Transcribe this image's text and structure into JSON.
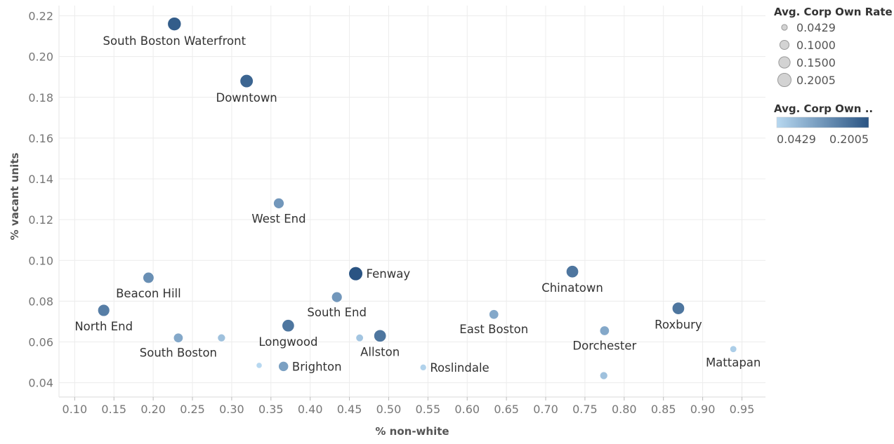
{
  "chart_data": {
    "type": "scatter",
    "xlabel": "% non-white",
    "ylabel": "% vacant units",
    "xlim": [
      0.08,
      0.98
    ],
    "ylim": [
      0.033,
      0.225
    ],
    "xticks": [
      "0.10",
      "0.15",
      "0.20",
      "0.25",
      "0.30",
      "0.35",
      "0.40",
      "0.45",
      "0.50",
      "0.55",
      "0.60",
      "0.65",
      "0.70",
      "0.75",
      "0.80",
      "0.85",
      "0.90",
      "0.95"
    ],
    "yticks": [
      "0.04",
      "0.06",
      "0.08",
      "0.10",
      "0.12",
      "0.14",
      "0.16",
      "0.18",
      "0.20",
      "0.22"
    ],
    "grid": true,
    "color_scale": {
      "low": "#b7d8f0",
      "high": "#2a5483"
    },
    "points": [
      {
        "label": "South Boston Waterfront",
        "x": 0.227,
        "y": 0.216,
        "rate": 0.19,
        "label_pos": "below"
      },
      {
        "label": "Downtown",
        "x": 0.319,
        "y": 0.188,
        "rate": 0.18,
        "label_pos": "below"
      },
      {
        "label": "West End",
        "x": 0.36,
        "y": 0.128,
        "rate": 0.12,
        "label_pos": "below"
      },
      {
        "label": "Fenway",
        "x": 0.458,
        "y": 0.0935,
        "rate": 0.2005,
        "label_pos": "right"
      },
      {
        "label": "Beacon Hill",
        "x": 0.194,
        "y": 0.0915,
        "rate": 0.13,
        "label_pos": "below"
      },
      {
        "label": "Chinatown",
        "x": 0.734,
        "y": 0.0945,
        "rate": 0.16,
        "label_pos": "below"
      },
      {
        "label": "South End",
        "x": 0.434,
        "y": 0.082,
        "rate": 0.12,
        "label_pos": "below"
      },
      {
        "label": "North End",
        "x": 0.137,
        "y": 0.0755,
        "rate": 0.15,
        "label_pos": "below"
      },
      {
        "label": "Roxbury",
        "x": 0.869,
        "y": 0.0765,
        "rate": 0.16,
        "label_pos": "below"
      },
      {
        "label": "East Boston",
        "x": 0.634,
        "y": 0.0735,
        "rate": 0.1,
        "label_pos": "below"
      },
      {
        "label": "Longwood",
        "x": 0.372,
        "y": 0.068,
        "rate": 0.16,
        "label_pos": "below"
      },
      {
        "label": "Dorchester",
        "x": 0.775,
        "y": 0.0655,
        "rate": 0.1,
        "label_pos": "below"
      },
      {
        "label": "South Boston",
        "x": 0.232,
        "y": 0.062,
        "rate": 0.1,
        "label_pos": "below"
      },
      {
        "label": "",
        "x": 0.287,
        "y": 0.062,
        "rate": 0.07,
        "label_pos": "none"
      },
      {
        "label": "",
        "x": 0.463,
        "y": 0.062,
        "rate": 0.065,
        "label_pos": "none"
      },
      {
        "label": "Allston",
        "x": 0.489,
        "y": 0.063,
        "rate": 0.16,
        "label_pos": "below"
      },
      {
        "label": "Mattapan",
        "x": 0.939,
        "y": 0.0565,
        "rate": 0.055,
        "label_pos": "below"
      },
      {
        "label": "Brighton",
        "x": 0.366,
        "y": 0.048,
        "rate": 0.11,
        "label_pos": "right"
      },
      {
        "label": "Roslindale",
        "x": 0.544,
        "y": 0.0475,
        "rate": 0.05,
        "label_pos": "right"
      },
      {
        "label": "",
        "x": 0.335,
        "y": 0.0485,
        "rate": 0.0429,
        "label_pos": "none"
      },
      {
        "label": "",
        "x": 0.774,
        "y": 0.0435,
        "rate": 0.07,
        "label_pos": "none"
      }
    ],
    "legend_size": {
      "title": "Avg. Corp Own Rate",
      "entries": [
        "0.0429",
        "0.1000",
        "0.1500",
        "0.2005"
      ],
      "values": [
        0.0429,
        0.1,
        0.15,
        0.2005
      ],
      "placement": "top-right"
    },
    "legend_color": {
      "title": "Avg. Corp Own ..",
      "min_label": "0.0429",
      "max_label": "0.2005",
      "placement": "top-right"
    }
  }
}
